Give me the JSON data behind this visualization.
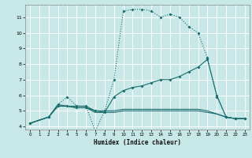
{
  "title": "",
  "xlabel": "Humidex (Indice chaleur)",
  "xlim": [
    -0.5,
    23.5
  ],
  "ylim": [
    3.8,
    11.8
  ],
  "yticks": [
    4,
    5,
    6,
    7,
    8,
    9,
    10,
    11
  ],
  "xticks": [
    0,
    1,
    2,
    3,
    4,
    5,
    6,
    7,
    8,
    9,
    10,
    11,
    12,
    13,
    14,
    15,
    16,
    17,
    18,
    19,
    20,
    21,
    22,
    23
  ],
  "bg_color": "#c8e8e8",
  "grid_color": "#ffffff",
  "line_color": "#1a6b6b",
  "line1_x": [
    0,
    2,
    3,
    4,
    5,
    6,
    7,
    8,
    9,
    10,
    11,
    12,
    13,
    14,
    15,
    16,
    17,
    18,
    19,
    20,
    21,
    22,
    23
  ],
  "line1_y": [
    4.2,
    4.6,
    5.4,
    5.9,
    5.3,
    5.3,
    3.7,
    5.0,
    7.0,
    11.4,
    11.5,
    11.5,
    11.4,
    11.0,
    11.2,
    11.0,
    10.4,
    10.0,
    8.4,
    5.9,
    4.6,
    4.5,
    4.5
  ],
  "line2_x": [
    0,
    2,
    3,
    4,
    5,
    6,
    7,
    8,
    9,
    10,
    11,
    12,
    13,
    14,
    15,
    16,
    17,
    18,
    19,
    20,
    21,
    22,
    23
  ],
  "line2_y": [
    4.2,
    4.6,
    5.4,
    5.3,
    5.3,
    5.3,
    5.0,
    5.0,
    5.0,
    5.1,
    5.1,
    5.1,
    5.1,
    5.1,
    5.1,
    5.1,
    5.1,
    5.1,
    5.0,
    4.8,
    4.6,
    4.5,
    4.5
  ],
  "line3_x": [
    0,
    2,
    3,
    4,
    5,
    6,
    7,
    8,
    9,
    10,
    11,
    12,
    13,
    14,
    15,
    16,
    17,
    18,
    19,
    20,
    21,
    22,
    23
  ],
  "line3_y": [
    4.2,
    4.6,
    5.3,
    5.3,
    5.2,
    5.2,
    5.0,
    4.9,
    5.9,
    6.3,
    6.5,
    6.6,
    6.8,
    7.0,
    7.0,
    7.2,
    7.5,
    7.8,
    8.3,
    6.0,
    4.6,
    4.5,
    4.5
  ],
  "line4_x": [
    0,
    2,
    3,
    4,
    5,
    6,
    7,
    8,
    9,
    10,
    11,
    12,
    13,
    14,
    15,
    16,
    17,
    18,
    19,
    20,
    21,
    22,
    23
  ],
  "line4_y": [
    4.2,
    4.6,
    5.3,
    5.3,
    5.2,
    5.2,
    4.9,
    4.9,
    4.9,
    5.0,
    5.0,
    5.0,
    5.0,
    5.0,
    5.0,
    5.0,
    5.0,
    5.0,
    4.9,
    4.8,
    4.6,
    4.5,
    4.5
  ]
}
